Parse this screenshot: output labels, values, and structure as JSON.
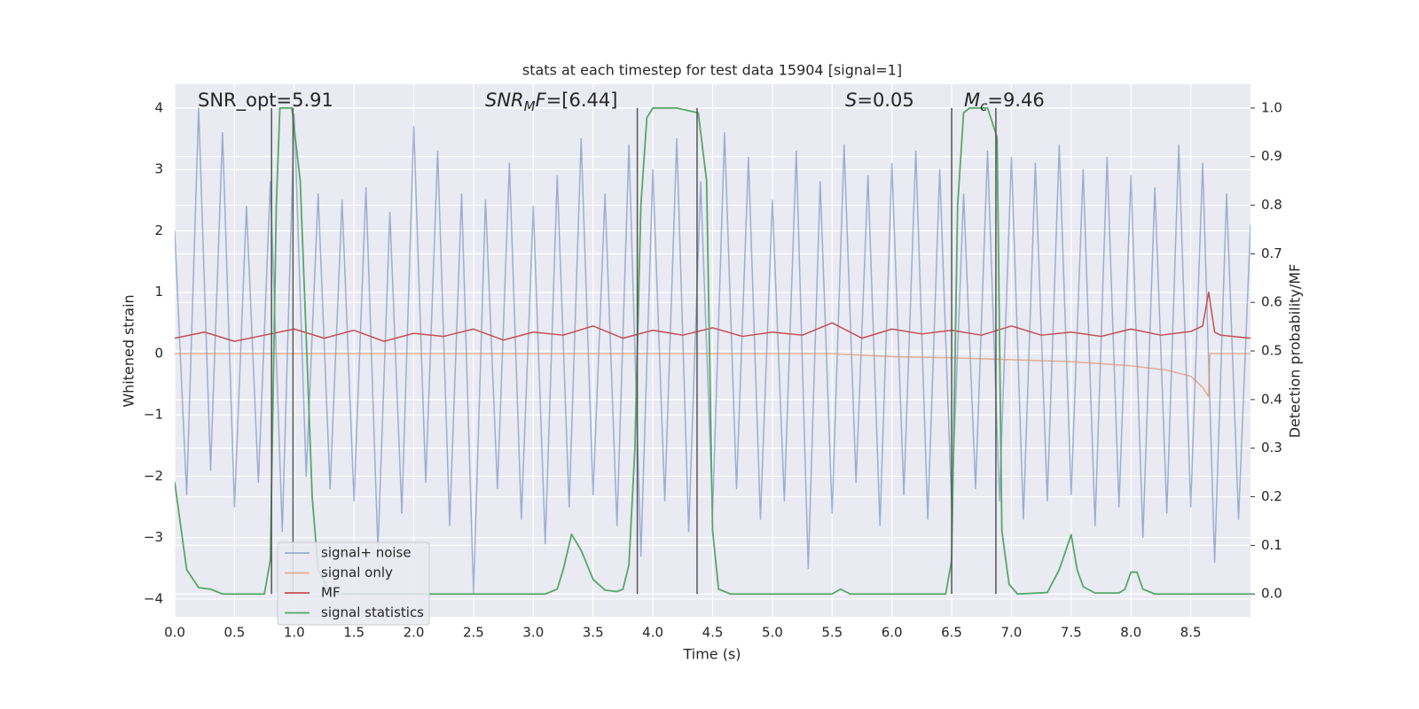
{
  "chart_data": {
    "type": "line",
    "title": "stats at each timestep for test data 15904 [signal=1]",
    "x_label": "Time (s)",
    "y_label": "Whitened strain",
    "y2_label": "Detection probability/MF",
    "xlim": [
      0,
      9.0
    ],
    "ylim": [
      -4.29,
      4.39
    ],
    "y2lim": [
      -0.047,
      1.049
    ],
    "xticks": [
      {
        "value": 0,
        "label": "0.0"
      },
      0.5,
      {
        "value": 1,
        "label": "1.0"
      },
      1.5,
      {
        "value": 2,
        "label": "2.0"
      },
      2.5,
      {
        "value": 3,
        "label": "3.0"
      },
      3.5,
      {
        "value": 4,
        "label": "4.0"
      },
      4.5,
      {
        "value": 5,
        "label": "5.0"
      },
      5.5,
      {
        "value": 6,
        "label": "6.0"
      },
      6.5,
      {
        "value": 7,
        "label": "7.0"
      },
      7.5,
      {
        "value": 8,
        "label": "8.0"
      },
      8.5
    ],
    "yticks": [
      {
        "value": -4,
        "label": "−4"
      },
      {
        "value": -3,
        "label": "−3"
      },
      {
        "value": -2,
        "label": "−2"
      },
      {
        "value": -1,
        "label": "−1"
      },
      0,
      1,
      2,
      3,
      4
    ],
    "y2ticks": [
      {
        "value": 0,
        "label": "0.0"
      },
      0.1,
      0.2,
      0.3,
      0.4,
      0.5,
      0.6,
      0.7,
      0.8,
      0.9,
      {
        "value": 1,
        "label": "1.0"
      }
    ],
    "grid": true,
    "legend": "lower left",
    "annotations": [
      {
        "parts": [
          {
            "text": "SNR_opt=5.91"
          }
        ]
      },
      {
        "parts": [
          {
            "text": "SNR",
            "italic": true
          },
          {
            "text": "M",
            "italic": true,
            "sub": true
          },
          {
            "text": "F",
            "italic": true
          },
          {
            "text": "=[6.44]"
          }
        ]
      },
      {
        "parts": [
          {
            "text": "S",
            "italic": true
          },
          {
            "text": "=0.05"
          }
        ]
      },
      {
        "parts": [
          {
            "text": "M",
            "italic": true
          },
          {
            "text": "c",
            "italic": true,
            "sub": true
          },
          {
            "text": "=9.46"
          }
        ]
      }
    ],
    "vlines": {
      "color": "#555555",
      "x": [
        0.81,
        0.99,
        3.87,
        4.37,
        6.5,
        6.87
      ],
      "ylim_y2": [
        0,
        1
      ]
    },
    "series": [
      {
        "name": "signal+ noise",
        "color": "#4c72b0",
        "opacity": 0.5,
        "axis": "y",
        "x": [
          0.0,
          0.1,
          0.2,
          0.3,
          0.4,
          0.5,
          0.6,
          0.7,
          0.8,
          0.9,
          1.0,
          1.1,
          1.2,
          1.3,
          1.4,
          1.5,
          1.6,
          1.7,
          1.8,
          1.9,
          2.0,
          2.1,
          2.2,
          2.3,
          2.4,
          2.5,
          2.6,
          2.7,
          2.8,
          2.9,
          3.0,
          3.1,
          3.2,
          3.3,
          3.4,
          3.5,
          3.6,
          3.7,
          3.8,
          3.9,
          4.0,
          4.1,
          4.2,
          4.3,
          4.4,
          4.5,
          4.6,
          4.7,
          4.8,
          4.9,
          5.0,
          5.1,
          5.2,
          5.3,
          5.4,
          5.5,
          5.6,
          5.7,
          5.8,
          5.9,
          6.0,
          6.1,
          6.2,
          6.3,
          6.4,
          6.5,
          6.6,
          6.7,
          6.8,
          6.9,
          7.0,
          7.1,
          7.2,
          7.3,
          7.4,
          7.5,
          7.6,
          7.7,
          7.8,
          7.9,
          8.0,
          8.1,
          8.2,
          8.3,
          8.4,
          8.5,
          8.6,
          8.7,
          8.8,
          8.9,
          9.0
        ],
        "values": [
          2.0,
          -2.3,
          4.0,
          -1.9,
          3.6,
          -2.5,
          2.4,
          -2.1,
          2.8,
          -2.9,
          3.9,
          -2.0,
          2.6,
          -2.2,
          2.5,
          -2.4,
          2.7,
          -3.2,
          2.3,
          -2.6,
          3.7,
          -2.1,
          3.3,
          -2.8,
          2.6,
          -3.9,
          2.5,
          -2.2,
          3.1,
          -2.7,
          2.4,
          -3.1,
          2.9,
          -2.5,
          3.5,
          -2.3,
          2.6,
          -2.8,
          3.4,
          -3.3,
          3.0,
          -2.4,
          3.5,
          -2.9,
          2.8,
          -2.6,
          3.6,
          -2.2,
          3.2,
          -2.7,
          2.5,
          -2.4,
          3.3,
          -3.5,
          2.8,
          -2.6,
          3.4,
          -2.1,
          2.9,
          -2.8,
          3.1,
          -2.3,
          3.3,
          -2.7,
          3.0,
          -2.5,
          2.6,
          -2.2,
          3.3,
          -2.4,
          3.2,
          -2.7,
          3.1,
          -2.4,
          3.4,
          -2.3,
          3.0,
          -2.8,
          3.2,
          -2.5,
          2.9,
          -3.0,
          2.7,
          -2.6,
          3.4,
          -2.5,
          3.1,
          -3.4,
          2.6,
          -2.7,
          2.1
        ]
      },
      {
        "name": "signal only",
        "color": "#dd8452",
        "opacity": 0.6,
        "axis": "y",
        "x": [
          0,
          5.5,
          6,
          6.5,
          7,
          7.5,
          8,
          8.3,
          8.5,
          8.6,
          8.65,
          8.66,
          9.0
        ],
        "values": [
          0,
          0,
          -0.05,
          -0.07,
          -0.1,
          -0.13,
          -0.2,
          -0.27,
          -0.37,
          -0.55,
          -0.7,
          0,
          0
        ]
      },
      {
        "name": "MF",
        "color": "#c44e52",
        "opacity": 1,
        "axis": "y",
        "x": [
          0,
          0.25,
          0.5,
          0.75,
          1,
          1.25,
          1.5,
          1.75,
          2,
          2.25,
          2.5,
          2.75,
          3,
          3.25,
          3.5,
          3.75,
          4,
          4.25,
          4.5,
          4.75,
          5,
          5.25,
          5.5,
          5.75,
          6,
          6.25,
          6.5,
          6.75,
          7,
          7.25,
          7.5,
          7.75,
          8,
          8.25,
          8.5,
          8.6,
          8.65,
          8.7,
          8.75,
          9.0
        ],
        "values": [
          0.25,
          0.35,
          0.2,
          0.3,
          0.4,
          0.25,
          0.38,
          0.2,
          0.33,
          0.28,
          0.4,
          0.22,
          0.35,
          0.3,
          0.45,
          0.25,
          0.38,
          0.3,
          0.42,
          0.28,
          0.35,
          0.3,
          0.5,
          0.25,
          0.4,
          0.32,
          0.38,
          0.3,
          0.45,
          0.3,
          0.35,
          0.28,
          0.4,
          0.3,
          0.36,
          0.45,
          1.0,
          0.35,
          0.3,
          0.25
        ]
      },
      {
        "name": "signal statistics",
        "color": "#55a868",
        "opacity": 1,
        "axis": "y2",
        "x": [
          0,
          0.1,
          0.2,
          0.3,
          0.4,
          0.5,
          0.75,
          0.8,
          0.85,
          0.88,
          0.98,
          1.05,
          1.12,
          1.15,
          1.2,
          1.3,
          3.1,
          3.2,
          3.25,
          3.32,
          3.4,
          3.5,
          3.6,
          3.7,
          3.75,
          3.8,
          3.85,
          3.9,
          3.95,
          4.0,
          4.2,
          4.38,
          4.45,
          4.5,
          4.55,
          4.65,
          5.5,
          5.57,
          5.65,
          6.45,
          6.5,
          6.55,
          6.6,
          6.65,
          6.8,
          6.88,
          6.92,
          6.98,
          7.05,
          7.3,
          7.4,
          7.5,
          7.55,
          7.6,
          7.7,
          7.9,
          7.95,
          8.0,
          8.05,
          8.1,
          8.2,
          9.0
        ],
        "values": [
          0.23,
          0.05,
          0.013,
          0.01,
          0,
          0,
          0,
          0.07,
          0.8,
          1.0,
          1.0,
          0.85,
          0.4,
          0.2,
          0.05,
          0,
          0,
          0.01,
          0.05,
          0.123,
          0.09,
          0.03,
          0.008,
          0.005,
          0.01,
          0.06,
          0.3,
          0.8,
          0.98,
          1.0,
          1.0,
          0.99,
          0.85,
          0.13,
          0.01,
          0,
          0,
          0.01,
          0,
          0,
          0.07,
          0.8,
          0.99,
          1.0,
          1.0,
          0.94,
          0.13,
          0.02,
          0,
          0.003,
          0.05,
          0.122,
          0.05,
          0.015,
          0.002,
          0.002,
          0.01,
          0.045,
          0.045,
          0.01,
          0,
          0
        ]
      }
    ]
  }
}
